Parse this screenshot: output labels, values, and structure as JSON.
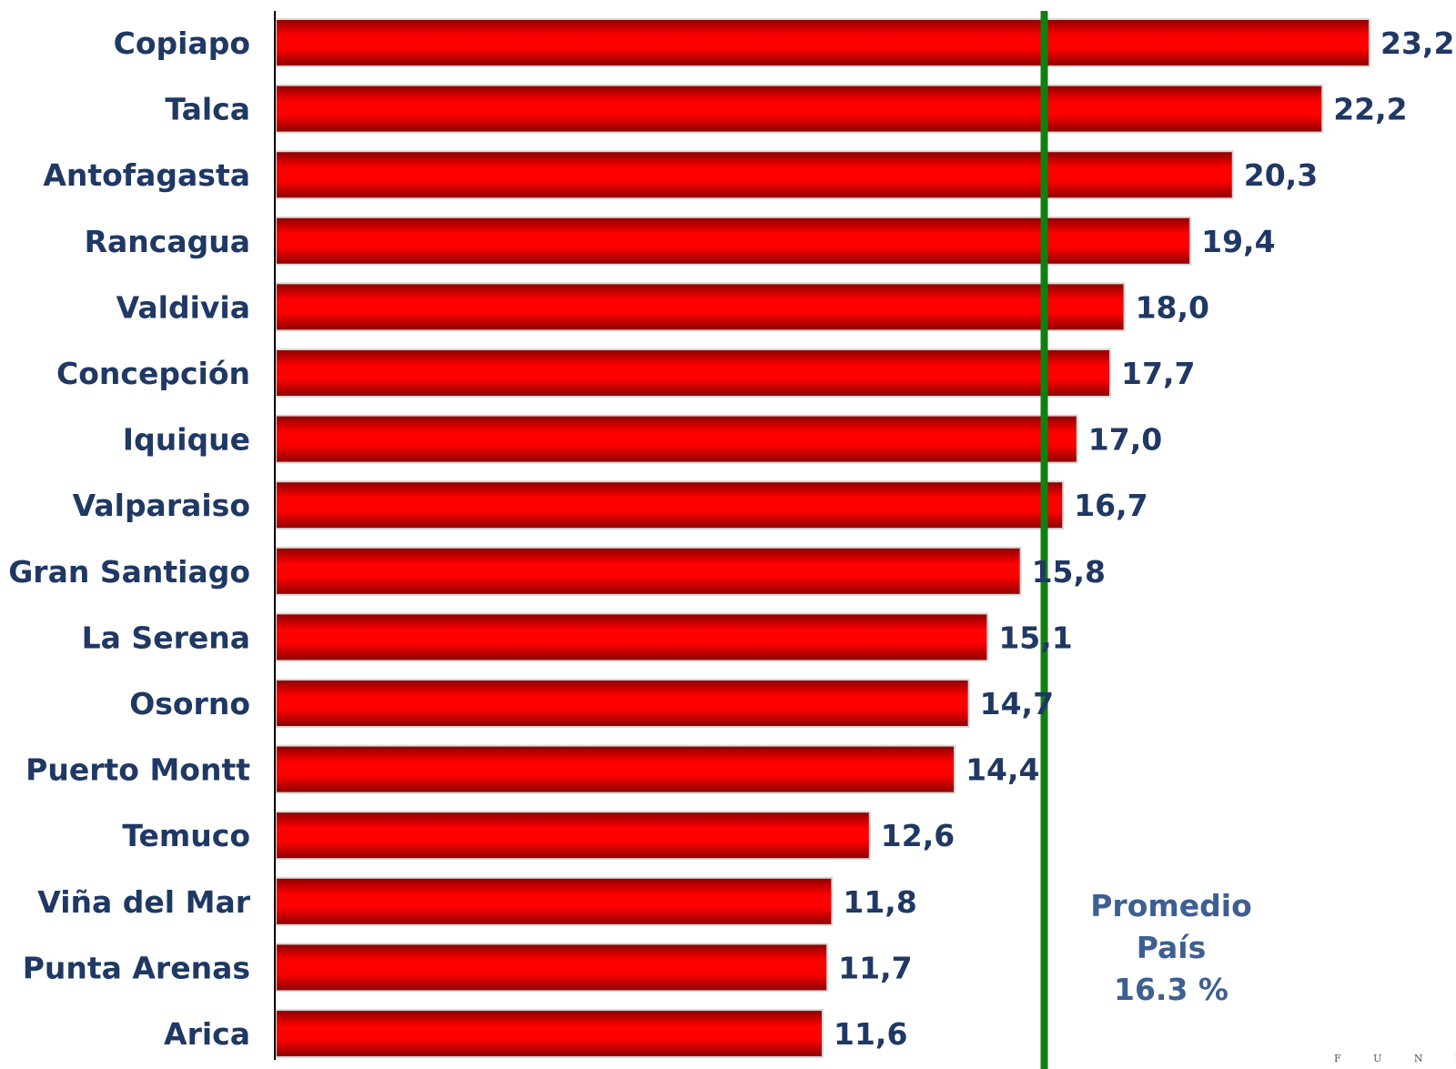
{
  "chart_data": {
    "type": "bar",
    "orientation": "horizontal",
    "categories": [
      "Copiapo",
      "Talca",
      "Antofagasta",
      "Rancagua",
      "Valdivia",
      "Concepción",
      "Iquique",
      "Valparaiso",
      "Gran Santiago",
      "La Serena",
      "Osorno",
      "Puerto Montt",
      "Temuco",
      "Viña del Mar",
      "Punta Arenas",
      "Arica"
    ],
    "values": [
      23.2,
      22.2,
      20.3,
      19.4,
      18.0,
      17.7,
      17.0,
      16.7,
      15.8,
      15.1,
      14.7,
      14.4,
      12.6,
      11.8,
      11.7,
      11.6
    ],
    "value_labels": [
      "23,2",
      "22,2",
      "20,3",
      "19,4",
      "18,0",
      "17,7",
      "17,0",
      "16,7",
      "15,8",
      "15,1",
      "14,7",
      "14,4",
      "12,6",
      "11,8",
      "11,7",
      "11,6"
    ],
    "xlim": [
      0,
      23.2
    ],
    "title": "",
    "xlabel": "",
    "ylabel": "",
    "grid": false,
    "legend": "none",
    "reference_line": {
      "value": 16.3,
      "label_lines": [
        "Promedio",
        "País",
        "16.3 %"
      ]
    }
  },
  "colors": {
    "bar": "#ff0000",
    "bar_dark": "#8a0000",
    "labels": "#1f3864",
    "reference_line": "#118011",
    "reference_text": "#3d5f92",
    "axis": "#000000"
  },
  "footer": {
    "mark": "F U N D A"
  }
}
